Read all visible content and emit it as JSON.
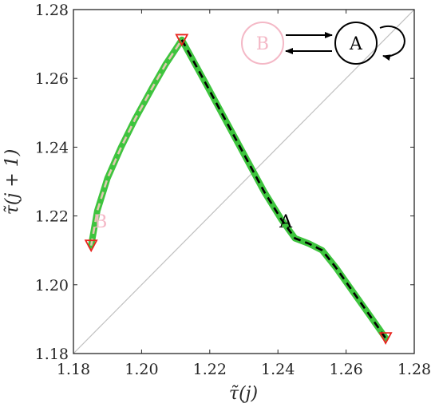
{
  "chart_data": {
    "type": "line",
    "xlabel": "τ̃(j)",
    "ylabel": "τ̃(j + 1)",
    "xlim": [
      1.18,
      1.28
    ],
    "ylim": [
      1.18,
      1.28
    ],
    "xticks": [
      "1.18",
      "1.20",
      "1.22",
      "1.24",
      "1.26",
      "1.28"
    ],
    "yticks": [
      "1.18",
      "1.20",
      "1.22",
      "1.24",
      "1.26",
      "1.28"
    ],
    "grid": false,
    "diagonal": {
      "from": [
        1.18,
        1.18
      ],
      "to": [
        1.28,
        1.28
      ],
      "color": "#c0c0c0"
    },
    "series": [
      {
        "name": "B",
        "label_position": [
          1.188,
          1.2185
        ],
        "label_color": "#f4b8c6",
        "color": "#3ec43e",
        "overlay_color": "#e0c8b0",
        "points": [
          [
            1.1852,
            1.2114
          ],
          [
            1.187,
            1.2215
          ],
          [
            1.19,
            1.231
          ],
          [
            1.194,
            1.24
          ],
          [
            1.198,
            1.248
          ],
          [
            1.203,
            1.257
          ],
          [
            1.207,
            1.264
          ],
          [
            1.2118,
            1.2712
          ]
        ]
      },
      {
        "name": "A",
        "label_position": [
          1.2423,
          1.2185
        ],
        "label_color": "#000000",
        "color": "#3ec43e",
        "overlay_color": "#000000",
        "points": [
          [
            1.2118,
            1.2712
          ],
          [
            1.218,
            1.26
          ],
          [
            1.224,
            1.249
          ],
          [
            1.23,
            1.238
          ],
          [
            1.236,
            1.227
          ],
          [
            1.241,
            1.219
          ],
          [
            1.245,
            1.2135
          ],
          [
            1.249,
            1.212
          ],
          [
            1.253,
            1.21
          ],
          [
            1.257,
            1.205
          ],
          [
            1.262,
            1.198
          ],
          [
            1.267,
            1.191
          ],
          [
            1.2716,
            1.1845
          ]
        ]
      }
    ],
    "markers": {
      "shape": "triangle-down",
      "color": "#e8251e",
      "points": [
        [
          1.1852,
          1.2114
        ],
        [
          1.2118,
          1.2712
        ],
        [
          1.2716,
          1.1845
        ]
      ]
    }
  },
  "inset": {
    "node_b": {
      "label": "B",
      "color": "#f4b8c6"
    },
    "node_a": {
      "label": "A",
      "color": "#000000"
    }
  }
}
